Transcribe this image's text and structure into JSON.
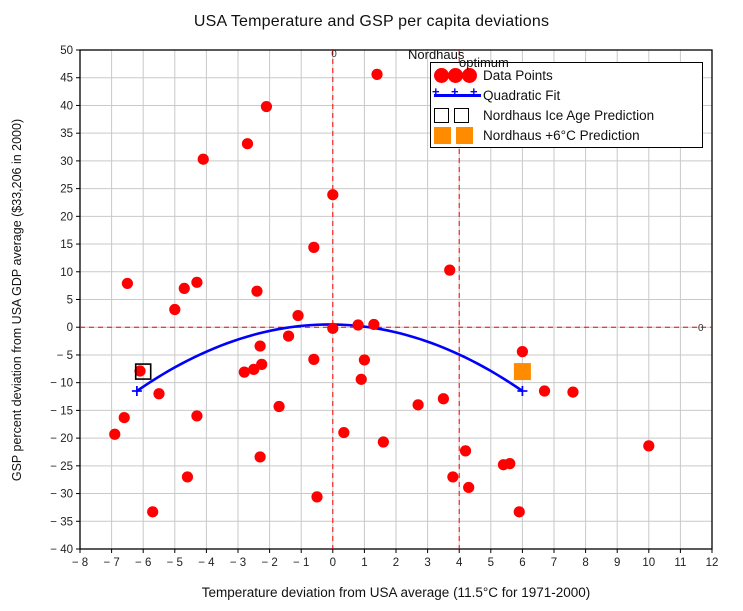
{
  "chart_data": {
    "type": "scatter",
    "title": "USA Temperature and GSP per capita deviations",
    "xlabel": "Temperature deviation from USA average (11.5°C for 1971-2000)",
    "ylabel": "GSP percent deviation from USA GDP average ($33,206 in 2000)",
    "xlim": [
      -8,
      12
    ],
    "ylim": [
      -40,
      50
    ],
    "grid": true,
    "colors": {
      "points": "#ff0000",
      "fit": "#0000ff",
      "ice_age_prediction": "#000000",
      "plus6c_prediction": "#ff8c00",
      "reference_lines": "#ff0000",
      "grid": "#c9c9c9"
    },
    "xticks": {
      "values": [
        -8,
        -7,
        -6,
        -5,
        -4,
        -3,
        -2,
        -1,
        0,
        1,
        2,
        3,
        4,
        5,
        6,
        7,
        8,
        9,
        10,
        11,
        12
      ],
      "labels": [
        "− 8",
        "− 7",
        "− 6",
        "− 5",
        "− 4",
        "− 3",
        "− 2",
        "− 1",
        "0",
        "1",
        "2",
        "3",
        "4",
        "5",
        "6",
        "7",
        "8",
        "9",
        "10",
        "11",
        "12"
      ]
    },
    "yticks": {
      "values": [
        50,
        45,
        40,
        35,
        30,
        25,
        20,
        15,
        10,
        5,
        0,
        -5,
        -10,
        -15,
        -20,
        -25,
        -30,
        -35,
        -40
      ],
      "labels": [
        "50",
        "45",
        "40",
        "35",
        "30",
        "25",
        "20",
        "15",
        "10",
        "5",
        "0",
        "− 5",
        "− 10",
        "− 15",
        "− 20",
        "− 25",
        "− 30",
        "− 35",
        "− 40"
      ]
    },
    "points": [
      [
        -6.9,
        -19.3
      ],
      [
        -6.6,
        -16.3
      ],
      [
        -6.5,
        7.9
      ],
      [
        -6.1,
        -7.9
      ],
      [
        -5.7,
        -33.3
      ],
      [
        -5.5,
        -12.0
      ],
      [
        -5.0,
        3.2
      ],
      [
        -4.7,
        7.0
      ],
      [
        -4.6,
        -27.0
      ],
      [
        -4.3,
        8.1
      ],
      [
        -4.3,
        -16.0
      ],
      [
        -4.1,
        30.3
      ],
      [
        -2.8,
        -8.1
      ],
      [
        -2.7,
        33.1
      ],
      [
        -2.5,
        -7.6
      ],
      [
        -2.4,
        6.5
      ],
      [
        -2.25,
        -6.7
      ],
      [
        -2.3,
        -3.4
      ],
      [
        -2.3,
        -23.4
      ],
      [
        -2.1,
        39.8
      ],
      [
        -1.7,
        -14.3
      ],
      [
        -1.4,
        -1.6
      ],
      [
        -1.1,
        2.1
      ],
      [
        -0.6,
        14.4
      ],
      [
        -0.6,
        -5.8
      ],
      [
        -0.5,
        -30.6
      ],
      [
        0.0,
        23.9
      ],
      [
        0.0,
        -0.2
      ],
      [
        0.35,
        -19.0
      ],
      [
        0.8,
        0.4
      ],
      [
        0.9,
        -9.4
      ],
      [
        1.0,
        -5.9
      ],
      [
        1.3,
        0.5
      ],
      [
        1.4,
        45.6
      ],
      [
        1.6,
        -20.7
      ],
      [
        2.7,
        -14.0
      ],
      [
        3.5,
        -12.9
      ],
      [
        3.7,
        10.3
      ],
      [
        3.8,
        -27.0
      ],
      [
        4.2,
        -22.3
      ],
      [
        4.3,
        -28.9
      ],
      [
        5.4,
        -24.8
      ],
      [
        5.6,
        -24.6
      ],
      [
        5.9,
        -33.3
      ],
      [
        6.0,
        -4.4
      ],
      [
        6.7,
        -11.5
      ],
      [
        7.6,
        -11.7
      ],
      [
        10.0,
        -21.4
      ]
    ],
    "fit": {
      "name": "Quadratic Fit",
      "x_start": -6.2,
      "x_end": 6.0,
      "vertex": [
        -0.1,
        0.5
      ],
      "a": -0.3226
    },
    "predictions": [
      {
        "name": "Nordhaus Ice Age Prediction",
        "point": [
          -6,
          -8
        ],
        "style": "open-square",
        "color": "#000000"
      },
      {
        "name": "Nordhaus +6°C Prediction",
        "point": [
          6,
          -8
        ],
        "style": "filled-square",
        "color": "#ff8c00"
      }
    ],
    "reference_lines": [
      {
        "name": "zero-temperature",
        "axis": "x",
        "value": 0
      },
      {
        "name": "nordhaus-optimum",
        "axis": "x",
        "value": 4.0
      },
      {
        "name": "zero-gsp",
        "axis": "y",
        "value": 0
      }
    ],
    "legend": {
      "position": "top-right",
      "entries": [
        {
          "label": "Data Points",
          "marker": "red-circles"
        },
        {
          "label": "Quadratic Fit",
          "marker": "blue-line-plus"
        },
        {
          "label": "Nordhaus Ice Age Prediction",
          "marker": "open-squares"
        },
        {
          "label": "Nordhaus +6°C Prediction",
          "marker": "orange-squares"
        }
      ]
    },
    "annotations": {
      "nordhaus_optimum": {
        "line1": "Nordhaus",
        "line2": "optimum"
      },
      "zero_x_label": "0",
      "zero_y_label": "0"
    }
  }
}
